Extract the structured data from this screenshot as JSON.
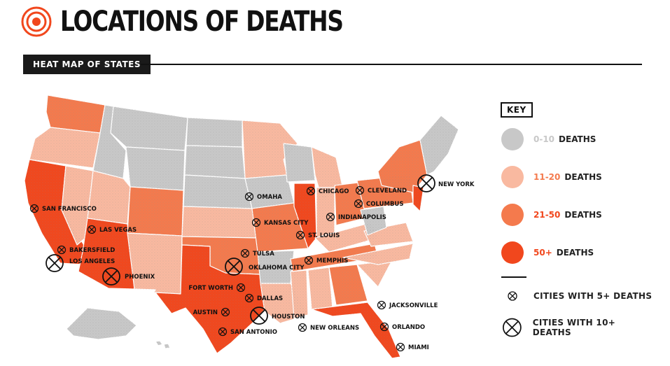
{
  "title": "LOCATIONS OF DEATHS",
  "section_label": "HEAT MAP OF STATES",
  "colors": {
    "tier_0_10": "#c8c8c8",
    "tier_11_20": "#f9b9a0",
    "tier_21_50": "#f47a4d",
    "tier_50_plus": "#f1471d",
    "accent": "#f1471d"
  },
  "key": {
    "title": "KEY",
    "tiers": [
      {
        "range": "0-10",
        "label": "DEATHS",
        "color": "#c8c8c8",
        "range_color": "#c8c8c8"
      },
      {
        "range": "11-20",
        "label": "DEATHS",
        "color": "#f9b9a0",
        "range_color": "#f47a4d"
      },
      {
        "range": "21-50",
        "label": "DEATHS",
        "color": "#f47a4d",
        "range_color": "#f1471d"
      },
      {
        "range": "50+",
        "label": "DEATHS",
        "color": "#f1471d",
        "range_color": "#f1471d"
      }
    ],
    "city_small_label": "CITIES WITH 5+ DEATHS",
    "city_large_label": "CITIES WITH 10+ DEATHS"
  },
  "cities": [
    {
      "name": "SAN FRANCISCO",
      "size": "small"
    },
    {
      "name": "LAS VEGAS",
      "size": "small"
    },
    {
      "name": "BAKERSFIELD",
      "size": "small"
    },
    {
      "name": "LOS ANGELES",
      "size": "large"
    },
    {
      "name": "PHOENIX",
      "size": "large"
    },
    {
      "name": "OMAHA",
      "size": "small"
    },
    {
      "name": "KANSAS CITY",
      "size": "small"
    },
    {
      "name": "TULSA",
      "size": "small"
    },
    {
      "name": "OKLAHOMA CITY",
      "size": "large"
    },
    {
      "name": "FORT WORTH",
      "size": "small"
    },
    {
      "name": "DALLAS",
      "size": "small"
    },
    {
      "name": "AUSTIN",
      "size": "small"
    },
    {
      "name": "HOUSTON",
      "size": "large"
    },
    {
      "name": "SAN ANTONIO",
      "size": "small"
    },
    {
      "name": "CHICAGO",
      "size": "small"
    },
    {
      "name": "ST. LOUIS",
      "size": "small"
    },
    {
      "name": "MEMPHIS",
      "size": "small"
    },
    {
      "name": "NEW ORLEANS",
      "size": "small"
    },
    {
      "name": "INDIANAPOLIS",
      "size": "small"
    },
    {
      "name": "CLEVELAND",
      "size": "small"
    },
    {
      "name": "COLUMBUS",
      "size": "small"
    },
    {
      "name": "NEW YORK",
      "size": "large"
    },
    {
      "name": "JACKSONVILLE",
      "size": "small"
    },
    {
      "name": "ORLANDO",
      "size": "small"
    },
    {
      "name": "MIAMI",
      "size": "small"
    }
  ]
}
